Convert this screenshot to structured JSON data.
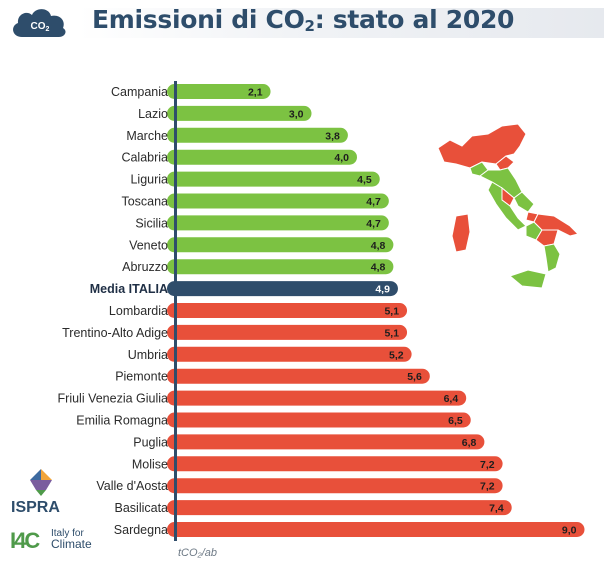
{
  "header": {
    "badge_label": "CO",
    "badge_sub": "2",
    "title_prefix": "Emissioni di CO",
    "title_sub": "2",
    "title_suffix": ": stato al 2020"
  },
  "colors": {
    "below_avg": "#7cc242",
    "average": "#2f4d6b",
    "above_avg": "#e8503a",
    "title": "#2e4d6b",
    "axis": "#2f4d6b"
  },
  "logos": {
    "ispra": "ISPRA",
    "i4c_mark": "I4C",
    "i4c_line1": "Italy for",
    "i4c_line2": "Climate"
  },
  "chart_data": {
    "type": "bar",
    "orientation": "horizontal",
    "categories": [
      "Campania",
      "Lazio",
      "Marche",
      "Calabria",
      "Liguria",
      "Toscana",
      "Sicilia",
      "Veneto",
      "Abruzzo",
      "Media ITALIA",
      "Lombardia",
      "Trentino-Alto Adige",
      "Umbria",
      "Piemonte",
      "Friuli Venezia Giulia",
      "Emilia Romagna",
      "Puglia",
      "Molise",
      "Valle d'Aosta",
      "Basilicata",
      "Sardegna"
    ],
    "values": [
      2.1,
      3.0,
      3.8,
      4.0,
      4.5,
      4.7,
      4.7,
      4.8,
      4.8,
      4.9,
      5.1,
      5.1,
      5.2,
      5.6,
      6.4,
      6.5,
      6.8,
      7.2,
      7.2,
      7.4,
      9.0
    ],
    "value_labels": [
      "2,1",
      "3,0",
      "3,8",
      "4,0",
      "4,5",
      "4,7",
      "4,7",
      "4,8",
      "4,8",
      "4,9",
      "5,1",
      "5,1",
      "5,2",
      "5,6",
      "6,4",
      "6,5",
      "6,8",
      "7,2",
      "7,2",
      "7,4",
      "9,0"
    ],
    "highlight": "Media ITALIA",
    "average": 4.9,
    "xlabel": "tCO₂/ab",
    "ylabel": "",
    "xlim": [
      0,
      9.2
    ],
    "grid": false,
    "legend": "none"
  }
}
